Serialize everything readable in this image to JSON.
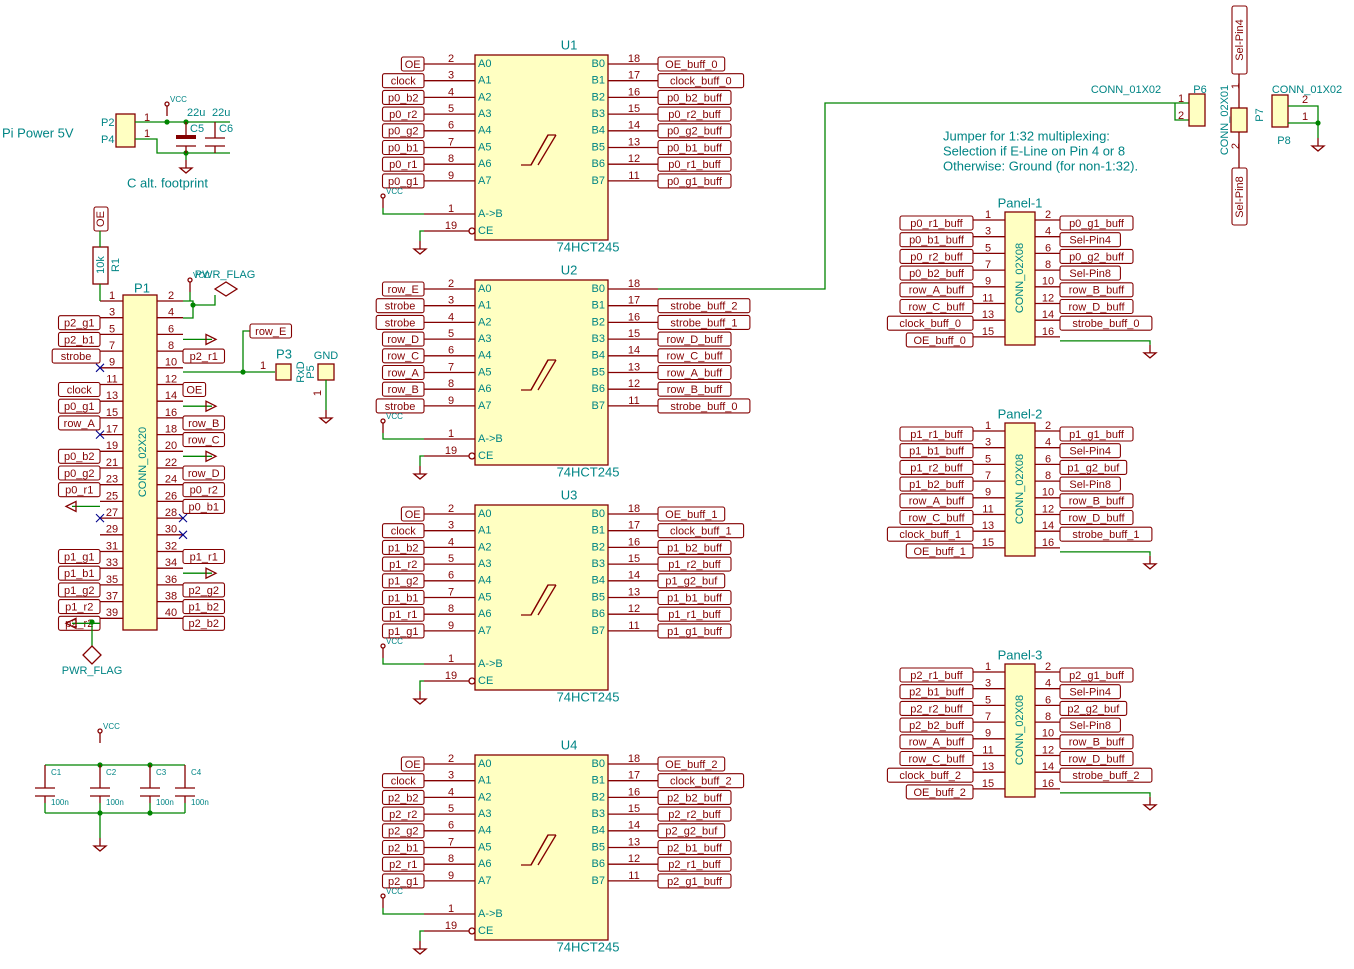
{
  "buffers": {
    "part": "74HCT245",
    "a_pins": [
      "A0",
      "A1",
      "A2",
      "A3",
      "A4",
      "A5",
      "A6",
      "A7"
    ],
    "b_pins": [
      "B0",
      "B1",
      "B2",
      "B3",
      "B4",
      "B5",
      "B6",
      "B7"
    ],
    "dir_pin": "A->B",
    "ce_pin": "CE",
    "dir_num": 1,
    "ce_num": 19,
    "vcc": "VCC",
    "units": [
      {
        "ref": "U1",
        "inputs": [
          {
            "pin": 2,
            "label": "OE"
          },
          {
            "pin": 3,
            "label": "clock"
          },
          {
            "pin": 4,
            "label": "p0_b2"
          },
          {
            "pin": 5,
            "label": "p0_r2"
          },
          {
            "pin": 6,
            "label": "p0_g2"
          },
          {
            "pin": 7,
            "label": "p0_b1"
          },
          {
            "pin": 8,
            "label": "p0_r1"
          },
          {
            "pin": 9,
            "label": "p0_g1"
          }
        ],
        "outputs": [
          {
            "pin": 18,
            "label": "OE_buff_0"
          },
          {
            "pin": 17,
            "label": "clock_buff_0"
          },
          {
            "pin": 16,
            "label": "p0_b2_buff"
          },
          {
            "pin": 15,
            "label": "p0_r2_buff"
          },
          {
            "pin": 14,
            "label": "p0_g2_buff"
          },
          {
            "pin": 13,
            "label": "p0_b1_buff"
          },
          {
            "pin": 12,
            "label": "p0_r1_buff"
          },
          {
            "pin": 11,
            "label": "p0_g1_buff"
          }
        ]
      },
      {
        "ref": "U2",
        "inputs": [
          {
            "pin": 2,
            "label": "row_E"
          },
          {
            "pin": 3,
            "label": "strobe"
          },
          {
            "pin": 4,
            "label": "strobe"
          },
          {
            "pin": 5,
            "label": "row_D"
          },
          {
            "pin": 6,
            "label": "row_C"
          },
          {
            "pin": 7,
            "label": "row_A"
          },
          {
            "pin": 8,
            "label": "row_B"
          },
          {
            "pin": 9,
            "label": "strobe"
          }
        ],
        "outputs": [
          {
            "pin": 18
          },
          {
            "pin": 17,
            "label": "strobe_buff_2"
          },
          {
            "pin": 16,
            "label": "strobe_buff_1"
          },
          {
            "pin": 15,
            "label": "row_D_buff"
          },
          {
            "pin": 14,
            "label": "row_C_buff"
          },
          {
            "pin": 13,
            "label": "row_A_buff"
          },
          {
            "pin": 12,
            "label": "row_B_buff"
          },
          {
            "pin": 11,
            "label": "strobe_buff_0"
          }
        ]
      },
      {
        "ref": "U3",
        "inputs": [
          {
            "pin": 2,
            "label": "OE"
          },
          {
            "pin": 3,
            "label": "clock"
          },
          {
            "pin": 4,
            "label": "p1_b2"
          },
          {
            "pin": 5,
            "label": "p1_r2"
          },
          {
            "pin": 6,
            "label": "p1_g2"
          },
          {
            "pin": 7,
            "label": "p1_b1"
          },
          {
            "pin": 8,
            "label": "p1_r1"
          },
          {
            "pin": 9,
            "label": "p1_g1"
          }
        ],
        "outputs": [
          {
            "pin": 18,
            "label": "OE_buff_1"
          },
          {
            "pin": 17,
            "label": "clock_buff_1"
          },
          {
            "pin": 16,
            "label": "p1_b2_buff"
          },
          {
            "pin": 15,
            "label": "p1_r2_buff"
          },
          {
            "pin": 14,
            "label": "p1_g2_buf"
          },
          {
            "pin": 13,
            "label": "p1_b1_buff"
          },
          {
            "pin": 12,
            "label": "p1_r1_buff"
          },
          {
            "pin": 11,
            "label": "p1_g1_buff"
          }
        ]
      },
      {
        "ref": "U4",
        "inputs": [
          {
            "pin": 2,
            "label": "OE"
          },
          {
            "pin": 3,
            "label": "clock"
          },
          {
            "pin": 4,
            "label": "p2_b2"
          },
          {
            "pin": 5,
            "label": "p2_r2"
          },
          {
            "pin": 6,
            "label": "p2_g2"
          },
          {
            "pin": 7,
            "label": "p2_b1"
          },
          {
            "pin": 8,
            "label": "p2_r1"
          },
          {
            "pin": 9,
            "label": "p2_g1"
          }
        ],
        "outputs": [
          {
            "pin": 18,
            "label": "OE_buff_2"
          },
          {
            "pin": 17,
            "label": "clock_buff_2"
          },
          {
            "pin": 16,
            "label": "p2_b2_buff"
          },
          {
            "pin": 15,
            "label": "p2_r2_buff"
          },
          {
            "pin": 14,
            "label": "p2_g2_buf"
          },
          {
            "pin": 13,
            "label": "p2_b1_buff"
          },
          {
            "pin": 12,
            "label": "p2_r1_buff"
          },
          {
            "pin": 11,
            "label": "p2_g1_buff"
          }
        ]
      }
    ]
  },
  "panels": {
    "part": "CONN_02X08",
    "units": [
      {
        "ref": "Panel-1",
        "left": [
          {
            "pin": 1,
            "label": "p0_r1_buff"
          },
          {
            "pin": 3,
            "label": "p0_b1_buff"
          },
          {
            "pin": 5,
            "label": "p0_r2_buff"
          },
          {
            "pin": 7,
            "label": "p0_b2_buff"
          },
          {
            "pin": 9,
            "label": "row_A_buff"
          },
          {
            "pin": 11,
            "label": "row_C_buff"
          },
          {
            "pin": 13,
            "label": "clock_buff_0"
          },
          {
            "pin": 15,
            "label": "OE_buff_0"
          }
        ],
        "right": [
          {
            "pin": 2,
            "label": "p0_g1_buff"
          },
          {
            "pin": 4,
            "label": "Sel-Pin4"
          },
          {
            "pin": 6,
            "label": "p0_g2_buff"
          },
          {
            "pin": 8,
            "label": "Sel-Pin8"
          },
          {
            "pin": 10,
            "label": "row_B_buff"
          },
          {
            "pin": 12,
            "label": "row_D_buff"
          },
          {
            "pin": 14,
            "label": "strobe_buff_0"
          },
          {
            "pin": 16
          }
        ]
      },
      {
        "ref": "Panel-2",
        "left": [
          {
            "pin": 1,
            "label": "p1_r1_buff"
          },
          {
            "pin": 3,
            "label": "p1_b1_buff"
          },
          {
            "pin": 5,
            "label": "p1_r2_buff"
          },
          {
            "pin": 7,
            "label": "p1_b2_buff"
          },
          {
            "pin": 9,
            "label": "row_A_buff"
          },
          {
            "pin": 11,
            "label": "row_C_buff"
          },
          {
            "pin": 13,
            "label": "clock_buff_1"
          },
          {
            "pin": 15,
            "label": "OE_buff_1"
          }
        ],
        "right": [
          {
            "pin": 2,
            "label": "p1_g1_buff"
          },
          {
            "pin": 4,
            "label": "Sel-Pin4"
          },
          {
            "pin": 6,
            "label": "p1_g2_buf"
          },
          {
            "pin": 8,
            "label": "Sel-Pin8"
          },
          {
            "pin": 10,
            "label": "row_B_buff"
          },
          {
            "pin": 12,
            "label": "row_D_buff"
          },
          {
            "pin": 14,
            "label": "strobe_buff_1"
          },
          {
            "pin": 16
          }
        ]
      },
      {
        "ref": "Panel-3",
        "left": [
          {
            "pin": 1,
            "label": "p2_r1_buff"
          },
          {
            "pin": 3,
            "label": "p2_b1_buff"
          },
          {
            "pin": 5,
            "label": "p2_r2_buff"
          },
          {
            "pin": 7,
            "label": "p2_b2_buff"
          },
          {
            "pin": 9,
            "label": "row_A_buff"
          },
          {
            "pin": 11,
            "label": "row_C_buff"
          },
          {
            "pin": 13,
            "label": "clock_buff_2"
          },
          {
            "pin": 15,
            "label": "OE_buff_2"
          }
        ],
        "right": [
          {
            "pin": 2,
            "label": "p2_g1_buff"
          },
          {
            "pin": 4,
            "label": "Sel-Pin4"
          },
          {
            "pin": 6,
            "label": "p2_g2_buf"
          },
          {
            "pin": 8,
            "label": "Sel-Pin8"
          },
          {
            "pin": 10,
            "label": "row_B_buff"
          },
          {
            "pin": 12,
            "label": "row_D_buff"
          },
          {
            "pin": 14,
            "label": "strobe_buff_2"
          },
          {
            "pin": 16
          }
        ]
      }
    ]
  },
  "p1": {
    "ref": "P1",
    "value": "CONN_02X20",
    "left": [
      {
        "pin": 1
      },
      {
        "pin": 3,
        "label": "p2_g1"
      },
      {
        "pin": 5,
        "label": "p2_b1"
      },
      {
        "pin": 7,
        "label": "strobe"
      },
      {
        "pin": 9
      },
      {
        "pin": 11,
        "label": "clock"
      },
      {
        "pin": 13,
        "label": "p0_g1"
      },
      {
        "pin": 15,
        "label": "row_A"
      },
      {
        "pin": 17
      },
      {
        "pin": 19,
        "label": "p0_b2"
      },
      {
        "pin": 21,
        "label": "p0_g2"
      },
      {
        "pin": 23,
        "label": "p0_r1"
      },
      {
        "pin": 25
      },
      {
        "pin": 27
      },
      {
        "pin": 29
      },
      {
        "pin": 31,
        "label": "p1_g1"
      },
      {
        "pin": 33,
        "label": "p1_b1"
      },
      {
        "pin": 35,
        "label": "p1_g2"
      },
      {
        "pin": 37,
        "label": "p1_r2"
      },
      {
        "pin": 39,
        "label": "p2_r2"
      }
    ],
    "right": [
      {
        "pin": 2
      },
      {
        "pin": 4
      },
      {
        "pin": 6
      },
      {
        "pin": 8,
        "label": "p2_r1"
      },
      {
        "pin": 10
      },
      {
        "pin": 12,
        "label": "OE"
      },
      {
        "pin": 14
      },
      {
        "pin": 16,
        "label": "row_B"
      },
      {
        "pin": 18,
        "label": "row_C"
      },
      {
        "pin": 20
      },
      {
        "pin": 22,
        "label": "row_D"
      },
      {
        "pin": 24,
        "label": "p0_r2"
      },
      {
        "pin": 26,
        "label": "p0_b1"
      },
      {
        "pin": 28
      },
      {
        "pin": 30
      },
      {
        "pin": 32,
        "label": "p1_r1"
      },
      {
        "pin": 34
      },
      {
        "pin": 36,
        "label": "p2_g2"
      },
      {
        "pin": 38,
        "label": "p1_b2"
      },
      {
        "pin": 40,
        "label": "p2_b2"
      }
    ]
  },
  "power": {
    "title": "Pi Power 5V",
    "p2": "P2",
    "p4": "P4",
    "pin": 1,
    "c5": "C5",
    "c6": "C6",
    "c_value": "22u",
    "note": "C alt. footprint"
  },
  "r1": {
    "ref": "R1",
    "value": "10k",
    "label": "OE"
  },
  "pwr_flag": "PWR_FLAG",
  "vcc": "VCC",
  "p3": {
    "ref": "P3",
    "value": "RxD",
    "pin": 1,
    "label": "row_E"
  },
  "p5": {
    "ref": "P5",
    "value": "GND",
    "pin": 1
  },
  "decoupling": {
    "refs": [
      "C1",
      "C2",
      "C3",
      "C4"
    ],
    "value": "100n"
  },
  "p6": {
    "ref": "P6",
    "value": "CONN_01X02",
    "pins": [
      1,
      2
    ]
  },
  "p7": {
    "ref": "P7",
    "value": "CONN_02X01",
    "pins": [
      1,
      2
    ],
    "labels": [
      "Sel-Pin4",
      "Sel-Pin8"
    ]
  },
  "p8": {
    "ref": "P8",
    "value": "CONN_01X02",
    "pins": [
      2,
      1
    ]
  },
  "jumper_note": [
    "Jumper for 1:32 multiplexing:",
    "Selection if E-Line on Pin 4 or 8",
    "Otherwise: Ground (for non-1:32)."
  ]
}
